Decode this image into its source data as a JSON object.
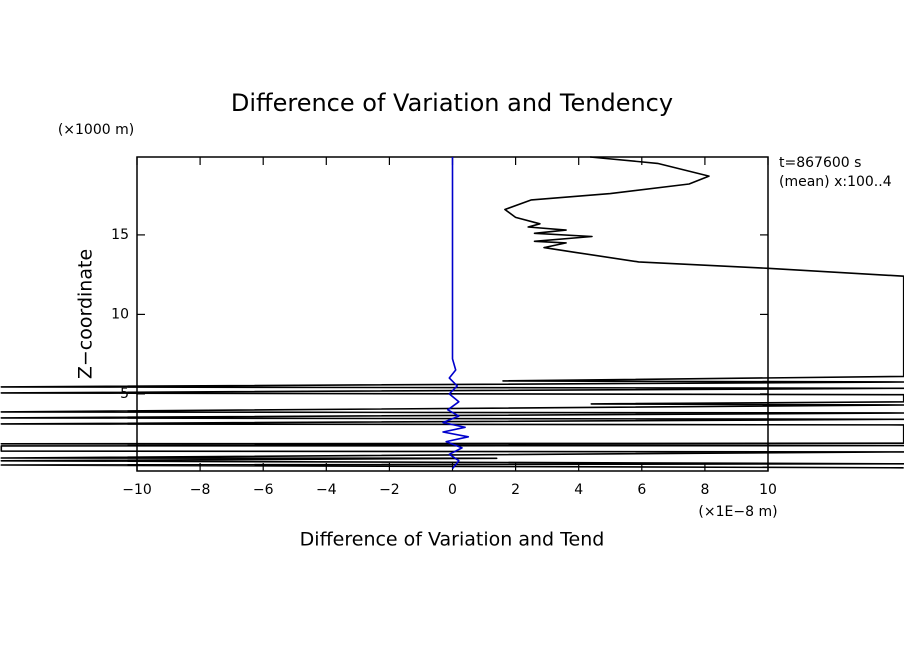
{
  "chart_data": {
    "type": "line",
    "title": "Difference of Variation and Tendency",
    "xlabel": "Difference of Variation and Tend",
    "ylabel": "Z−coordinate",
    "xunit": "(×1E−8 m)",
    "yunit": "(×1000 m)",
    "annotations": [
      "t=867600 s",
      "(mean) x:100..4"
    ],
    "xlim": [
      -10,
      10
    ],
    "ylim": [
      0.15,
      19.9
    ],
    "xticks": [
      {
        "value": -10,
        "label": "−10"
      },
      {
        "value": -8,
        "label": "−8"
      },
      {
        "value": -6,
        "label": "−6"
      },
      {
        "value": -4,
        "label": "−4"
      },
      {
        "value": -2,
        "label": "−2"
      },
      0,
      2,
      4,
      6,
      8,
      10
    ],
    "yticks": [
      5,
      10,
      15
    ],
    "grid": false,
    "series": [
      {
        "color": "#000000",
        "x": [
          4.36,
          6.5,
          8.13,
          7.5,
          5.0,
          2.5,
          1.66,
          2.0,
          2.77,
          2.4,
          3.6,
          2.6,
          4.42,
          2.6,
          3.6,
          2.9,
          3.9,
          5.9,
          10.0,
          14.3,
          14.3,
          1.6,
          14.3,
          -14.3,
          14.3,
          -14.3,
          14.3,
          14.3,
          4.4,
          14.3,
          -14.3,
          14.3,
          -14.3,
          14.3,
          -14.3,
          14.3,
          14.3,
          -14.3,
          14.3,
          -14.3,
          -14.3,
          14.3,
          -14.3,
          1.4,
          -14.3,
          14.3,
          -14.3,
          14.3
        ],
        "values": [
          19.9,
          19.5,
          18.7,
          18.2,
          17.6,
          17.2,
          16.6,
          16.1,
          15.7,
          15.5,
          15.3,
          15.1,
          14.9,
          14.6,
          14.5,
          14.2,
          13.9,
          13.3,
          12.9,
          12.4,
          6.1,
          5.82,
          5.75,
          5.44,
          5.35,
          5.06,
          4.95,
          4.5,
          4.37,
          4.3,
          3.87,
          3.8,
          3.49,
          3.4,
          3.11,
          3.05,
          1.9,
          1.86,
          1.75,
          1.73,
          1.4,
          1.35,
          0.97,
          0.95,
          0.79,
          0.6,
          0.53,
          0.35
        ]
      },
      {
        "color": "#0000cc",
        "x": [
          0,
          0,
          0.1,
          -0.1,
          0.15,
          -0.1,
          0.2,
          -0.15,
          0.2,
          -0.3,
          0.4,
          -0.3,
          0.5,
          -0.2,
          0.3,
          -0.1,
          0.2,
          0
        ],
        "values": [
          19.9,
          7.2,
          6.5,
          6.0,
          5.5,
          5.0,
          4.5,
          4.0,
          3.6,
          3.2,
          2.9,
          2.6,
          2.3,
          2.0,
          1.6,
          1.2,
          0.8,
          0.3
        ]
      }
    ]
  }
}
